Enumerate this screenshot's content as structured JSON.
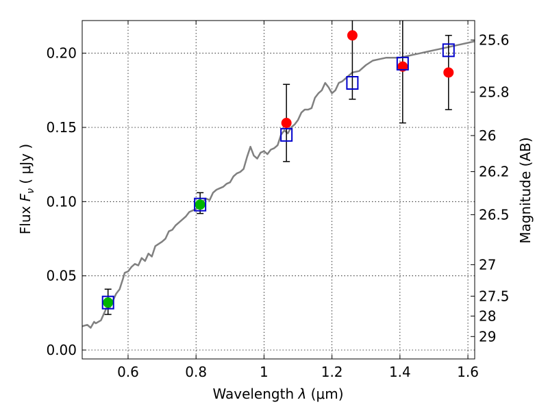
{
  "chart_data": {
    "type": "scatter",
    "title": "",
    "xlabel": "Wavelength  λ (μm)",
    "ylabel": "Flux  F_ν  ( μJy )",
    "y2label": "Magnitude (AB)",
    "xlim": [
      0.465,
      1.62
    ],
    "ylim": [
      -0.006,
      0.222
    ],
    "grid": true,
    "x_ticks": [
      0.6,
      0.8,
      1.0,
      1.2,
      1.4,
      1.6
    ],
    "x_tick_labels": [
      "0.6",
      "0.8",
      "1",
      "1.2",
      "1.4",
      "1.6"
    ],
    "y_ticks": [
      0.0,
      0.05,
      0.1,
      0.15,
      0.2
    ],
    "y_tick_labels": [
      "0.00",
      "0.05",
      "0.10",
      "0.15",
      "0.20"
    ],
    "y2_ticks": [
      {
        "flux": 0.2089,
        "label": "25.6"
      },
      {
        "flux": 0.1738,
        "label": "25.8"
      },
      {
        "flux": 0.1445,
        "label": "26"
      },
      {
        "flux": 0.1202,
        "label": "26.2"
      },
      {
        "flux": 0.0912,
        "label": "26.5"
      },
      {
        "flux": 0.0575,
        "label": "27"
      },
      {
        "flux": 0.0363,
        "label": "27.5"
      },
      {
        "flux": 0.0229,
        "label": "28"
      },
      {
        "flux": 0.0091,
        "label": "29"
      }
    ],
    "y_label_parts": {
      "prefix": "Flux  ",
      "symbol": "F",
      "subscript": "ν",
      "units": "  ( μJy )"
    },
    "x_label_parts": {
      "prefix": "Wavelength  ",
      "symbol": "λ",
      "units": " (μm)"
    },
    "series": [
      {
        "name": "model_spectrum",
        "kind": "line",
        "color": "#808080",
        "x": [
          0.465,
          0.48,
          0.49,
          0.5,
          0.505,
          0.52,
          0.53,
          0.54,
          0.545,
          0.555,
          0.565,
          0.575,
          0.585,
          0.59,
          0.6,
          0.61,
          0.62,
          0.63,
          0.64,
          0.65,
          0.66,
          0.67,
          0.68,
          0.7,
          0.71,
          0.72,
          0.73,
          0.74,
          0.75,
          0.76,
          0.77,
          0.78,
          0.79,
          0.8,
          0.81,
          0.82,
          0.83,
          0.84,
          0.85,
          0.86,
          0.87,
          0.88,
          0.89,
          0.9,
          0.91,
          0.92,
          0.93,
          0.94,
          0.95,
          0.96,
          0.97,
          0.98,
          0.99,
          1.0,
          1.01,
          1.02,
          1.03,
          1.04,
          1.05,
          1.06,
          1.07,
          1.08,
          1.09,
          1.1,
          1.11,
          1.12,
          1.13,
          1.14,
          1.15,
          1.16,
          1.17,
          1.18,
          1.19,
          1.2,
          1.21,
          1.22,
          1.23,
          1.24,
          1.25,
          1.26,
          1.28,
          1.3,
          1.32,
          1.34,
          1.36,
          1.38,
          1.4,
          1.42,
          1.44,
          1.46,
          1.48,
          1.5,
          1.52,
          1.54,
          1.56,
          1.58,
          1.6,
          1.62
        ],
        "y": [
          0.016,
          0.017,
          0.015,
          0.019,
          0.018,
          0.02,
          0.025,
          0.03,
          0.028,
          0.033,
          0.038,
          0.041,
          0.048,
          0.052,
          0.053,
          0.056,
          0.058,
          0.057,
          0.062,
          0.06,
          0.065,
          0.063,
          0.07,
          0.073,
          0.075,
          0.08,
          0.081,
          0.084,
          0.086,
          0.088,
          0.09,
          0.093,
          0.094,
          0.095,
          0.098,
          0.1,
          0.102,
          0.101,
          0.106,
          0.108,
          0.109,
          0.11,
          0.112,
          0.113,
          0.117,
          0.119,
          0.12,
          0.122,
          0.13,
          0.137,
          0.131,
          0.129,
          0.133,
          0.134,
          0.132,
          0.135,
          0.136,
          0.138,
          0.145,
          0.148,
          0.146,
          0.15,
          0.152,
          0.155,
          0.16,
          0.162,
          0.162,
          0.163,
          0.17,
          0.173,
          0.175,
          0.18,
          0.177,
          0.173,
          0.175,
          0.18,
          0.181,
          0.183,
          0.185,
          0.187,
          0.188,
          0.192,
          0.195,
          0.196,
          0.197,
          0.197,
          0.197,
          0.198,
          0.199,
          0.2,
          0.201,
          0.202,
          0.203,
          0.204,
          0.205,
          0.206,
          0.207,
          0.208
        ]
      },
      {
        "name": "observed_green",
        "kind": "points",
        "color": "#00b400",
        "x": [
          0.541,
          0.812
        ],
        "y": [
          0.032,
          0.098
        ],
        "yerr_low": [
          0.024,
          0.092
        ],
        "yerr_high": [
          0.041,
          0.106
        ]
      },
      {
        "name": "observed_red",
        "kind": "points",
        "color": "#ff0000",
        "x": [
          1.066,
          1.26,
          1.408,
          1.543
        ],
        "y": [
          0.153,
          0.212,
          0.191,
          0.187
        ],
        "yerr_low": [
          0.127,
          0.169,
          0.153,
          0.162
        ],
        "yerr_high": [
          0.179,
          0.222,
          0.222,
          0.212
        ]
      },
      {
        "name": "model_bandpass",
        "kind": "open_squares",
        "color": "#0000cc",
        "x": [
          0.541,
          0.812,
          1.066,
          1.26,
          1.408,
          1.543
        ],
        "y": [
          0.032,
          0.098,
          0.145,
          0.18,
          0.193,
          0.202
        ]
      }
    ]
  }
}
